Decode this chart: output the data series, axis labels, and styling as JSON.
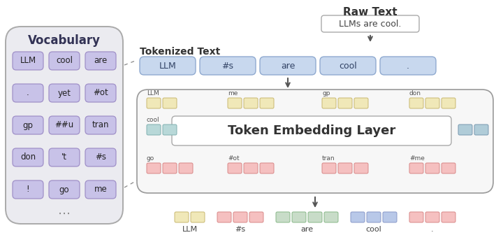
{
  "bg_color": "#ffffff",
  "vocab_box_color": "#ebebf0",
  "vocab_cell_color": "#c8c2e8",
  "vocab_cell_edge": "#a090c8",
  "vocab_title": "Vocabulary",
  "vocab_items": [
    [
      "LLM",
      "cool",
      "are"
    ],
    [
      ".",
      "yet",
      "#ot"
    ],
    [
      "gp",
      "##u",
      "tran"
    ],
    [
      "don",
      "'t",
      "#s"
    ],
    [
      "!",
      "go",
      "me"
    ]
  ],
  "raw_text_label": "Raw Text",
  "raw_text_content": "LLMs are cool.",
  "tokenized_label": "Tokenized Text",
  "tokenized_tokens": [
    "LLM",
    "#s",
    "are",
    "cool",
    "."
  ],
  "token_box_color": "#c8d8ee",
  "token_box_edge": "#90aad0",
  "embedding_title": "Token Embedding Layer",
  "embed_top": [
    {
      "label": "LLM",
      "color": "#f0e8b8",
      "edge": "#c8b870",
      "n": 2
    },
    {
      "label": "me",
      "color": "#f0e8b8",
      "edge": "#c8b870",
      "n": 3
    },
    {
      "label": "gp",
      "color": "#f0e8b8",
      "edge": "#c8b870",
      "n": 3
    },
    {
      "label": "don",
      "color": "#f0e8b8",
      "edge": "#c8b870",
      "n": 3
    }
  ],
  "embed_bot": [
    {
      "label": "go",
      "color": "#f5c0c0",
      "edge": "#d88888",
      "n": 3
    },
    {
      "label": "#ot",
      "color": "#f5c0c0",
      "edge": "#d88888",
      "n": 3
    },
    {
      "label": "tran",
      "color": "#f5c0c0",
      "edge": "#d88888",
      "n": 3
    },
    {
      "label": "#me",
      "color": "#f5c0c0",
      "edge": "#d88888",
      "n": 3
    }
  ],
  "embed_cool_color": "#b8d8d8",
  "embed_cool_edge": "#80b0b0",
  "embed_right_color": "#b0ccd8",
  "embed_right_edge": "#7898b0",
  "output_tokens": [
    {
      "label": "LLM",
      "color": "#f0e8b8",
      "edge": "#c8b870",
      "n": 2
    },
    {
      "label": "#s",
      "color": "#f5c0c0",
      "edge": "#d88888",
      "n": 3
    },
    {
      "label": "are",
      "color": "#c8dcc8",
      "edge": "#88b888",
      "n": 4
    },
    {
      "label": "cool",
      "color": "#b8c8e8",
      "edge": "#8898c8",
      "n": 3
    },
    {
      "label": ".",
      "color": "#f5c0c0",
      "edge": "#d88888",
      "n": 3
    }
  ]
}
